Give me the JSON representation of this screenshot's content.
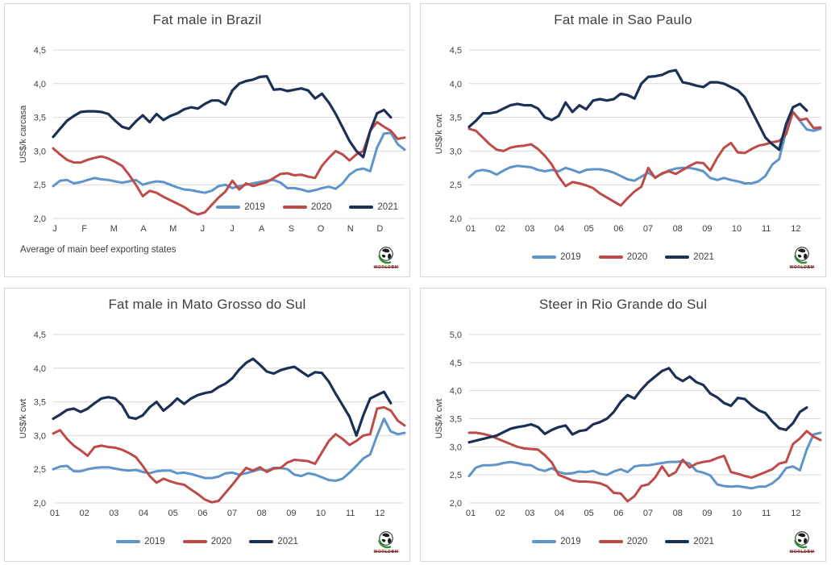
{
  "page": {
    "background": "#ffffff"
  },
  "branding": {
    "logo_text": "WORLDBM"
  },
  "style": {
    "grid_color": "#D9D9D9",
    "axis_text_color": "#404040",
    "title_color": "#3F3F3F",
    "panel_border_color": "#D8D8D8"
  },
  "chart_data": [
    {
      "type": "line",
      "title": "Fat male in Brazil",
      "ylabel": "US$/k carcasa",
      "note": "Average of main beef exporting states",
      "legend_position": "inside",
      "grid": true,
      "ylim": [
        2.0,
        4.5
      ],
      "ytick_labels": [
        "2,0",
        "2,5",
        "3,0",
        "3,5",
        "4,0",
        "4,5"
      ],
      "x_categories": [
        "J",
        "F",
        "M",
        "A",
        "M",
        "J",
        "J",
        "A",
        "S",
        "O",
        "N",
        "D"
      ],
      "series": [
        {
          "name": "2019",
          "color": "#5E94C9",
          "values": [
            2.48,
            2.56,
            2.57,
            2.52,
            2.54,
            2.57,
            2.6,
            2.58,
            2.57,
            2.55,
            2.53,
            2.55,
            2.57,
            2.5,
            2.53,
            2.55,
            2.54,
            2.5,
            2.46,
            2.43,
            2.42,
            2.4,
            2.38,
            2.41,
            2.48,
            2.5,
            2.45,
            2.48,
            2.5,
            2.52,
            2.54,
            2.56,
            2.57,
            2.53,
            2.45,
            2.45,
            2.43,
            2.4,
            2.42,
            2.45,
            2.47,
            2.44,
            2.52,
            2.65,
            2.72,
            2.74,
            2.7,
            3.05,
            3.26,
            3.27,
            3.1,
            3.02
          ]
        },
        {
          "name": "2020",
          "color": "#BE4B48",
          "values": [
            3.04,
            2.95,
            2.87,
            2.83,
            2.83,
            2.87,
            2.9,
            2.92,
            2.89,
            2.84,
            2.78,
            2.65,
            2.5,
            2.33,
            2.41,
            2.38,
            2.32,
            2.27,
            2.22,
            2.17,
            2.1,
            2.06,
            2.09,
            2.2,
            2.31,
            2.4,
            2.56,
            2.43,
            2.52,
            2.48,
            2.51,
            2.54,
            2.6,
            2.66,
            2.67,
            2.64,
            2.65,
            2.62,
            2.6,
            2.78,
            2.9,
            3.0,
            2.95,
            2.86,
            2.95,
            3.0,
            3.3,
            3.43,
            3.36,
            3.3,
            3.18,
            3.2
          ]
        },
        {
          "name": "2021",
          "color": "#1C3055",
          "values": [
            3.21,
            3.33,
            3.45,
            3.52,
            3.58,
            3.59,
            3.59,
            3.58,
            3.55,
            3.45,
            3.36,
            3.33,
            3.44,
            3.53,
            3.43,
            3.55,
            3.46,
            3.52,
            3.56,
            3.62,
            3.65,
            3.63,
            3.7,
            3.75,
            3.75,
            3.69,
            3.9,
            4.0,
            4.04,
            4.06,
            4.1,
            4.11,
            3.91,
            3.92,
            3.89,
            3.91,
            3.93,
            3.9,
            3.78,
            3.85,
            3.72,
            3.55,
            3.35,
            3.15,
            3.0,
            2.91,
            3.3,
            3.56,
            3.61,
            3.5
          ]
        }
      ]
    },
    {
      "type": "line",
      "title": "Fat male in Sao Paulo",
      "ylabel": "US$/k cwt",
      "legend_position": "below",
      "grid": true,
      "ylim": [
        2.0,
        4.5
      ],
      "ytick_labels": [
        "2,0",
        "2,5",
        "3,0",
        "3,5",
        "4,0",
        "4,5"
      ],
      "x_categories": [
        "01",
        "02",
        "03",
        "04",
        "05",
        "06",
        "07",
        "08",
        "09",
        "10",
        "11",
        "12"
      ],
      "series": [
        {
          "name": "2019",
          "color": "#5E94C9",
          "values": [
            2.61,
            2.7,
            2.72,
            2.7,
            2.65,
            2.71,
            2.76,
            2.78,
            2.77,
            2.76,
            2.72,
            2.7,
            2.72,
            2.7,
            2.75,
            2.72,
            2.68,
            2.72,
            2.73,
            2.73,
            2.71,
            2.68,
            2.63,
            2.58,
            2.56,
            2.62,
            2.68,
            2.61,
            2.66,
            2.71,
            2.74,
            2.75,
            2.75,
            2.73,
            2.7,
            2.6,
            2.57,
            2.6,
            2.57,
            2.55,
            2.52,
            2.52,
            2.55,
            2.63,
            2.8,
            2.88,
            3.3,
            3.58,
            3.45,
            3.32,
            3.3,
            3.33
          ]
        },
        {
          "name": "2020",
          "color": "#BE4B48",
          "values": [
            3.33,
            3.3,
            3.2,
            3.1,
            3.02,
            3.0,
            3.05,
            3.07,
            3.08,
            3.1,
            3.03,
            2.93,
            2.8,
            2.62,
            2.48,
            2.54,
            2.52,
            2.49,
            2.45,
            2.37,
            2.31,
            2.25,
            2.19,
            2.3,
            2.4,
            2.47,
            2.75,
            2.6,
            2.67,
            2.7,
            2.66,
            2.72,
            2.78,
            2.83,
            2.82,
            2.71,
            2.9,
            3.05,
            3.12,
            2.98,
            2.97,
            3.03,
            3.08,
            3.1,
            3.13,
            3.15,
            3.25,
            3.58,
            3.46,
            3.48,
            3.34,
            3.35
          ]
        },
        {
          "name": "2021",
          "color": "#1C3055",
          "values": [
            3.36,
            3.45,
            3.56,
            3.56,
            3.58,
            3.63,
            3.68,
            3.7,
            3.68,
            3.68,
            3.63,
            3.5,
            3.46,
            3.52,
            3.72,
            3.58,
            3.68,
            3.62,
            3.75,
            3.77,
            3.75,
            3.77,
            3.85,
            3.83,
            3.78,
            4.0,
            4.1,
            4.11,
            4.13,
            4.18,
            4.2,
            4.02,
            4.0,
            3.97,
            3.95,
            4.02,
            4.02,
            4.0,
            3.95,
            3.9,
            3.8,
            3.6,
            3.4,
            3.2,
            3.1,
            3.02,
            3.4,
            3.65,
            3.7,
            3.6
          ]
        }
      ]
    },
    {
      "type": "line",
      "title": "Fat male in Mato Grosso do Sul",
      "ylabel": "US$/k cwt",
      "legend_position": "below",
      "grid": true,
      "ylim": [
        2.0,
        4.5
      ],
      "ytick_labels": [
        "2,0",
        "2,5",
        "3,0",
        "3,5",
        "4,0",
        "4,5"
      ],
      "x_categories": [
        "01",
        "02",
        "03",
        "04",
        "05",
        "06",
        "07",
        "08",
        "09",
        "10",
        "11",
        "12"
      ],
      "series": [
        {
          "name": "2019",
          "color": "#5E94C9",
          "values": [
            2.5,
            2.54,
            2.55,
            2.47,
            2.47,
            2.5,
            2.52,
            2.53,
            2.53,
            2.51,
            2.49,
            2.48,
            2.49,
            2.46,
            2.44,
            2.47,
            2.48,
            2.48,
            2.44,
            2.45,
            2.43,
            2.4,
            2.37,
            2.37,
            2.39,
            2.44,
            2.45,
            2.42,
            2.44,
            2.47,
            2.5,
            2.48,
            2.52,
            2.52,
            2.5,
            2.42,
            2.4,
            2.44,
            2.42,
            2.38,
            2.34,
            2.33,
            2.36,
            2.45,
            2.55,
            2.66,
            2.72,
            3.0,
            3.25,
            3.06,
            3.02,
            3.04
          ]
        },
        {
          "name": "2020",
          "color": "#BE4B48",
          "values": [
            3.03,
            3.08,
            2.95,
            2.85,
            2.78,
            2.7,
            2.83,
            2.85,
            2.83,
            2.82,
            2.79,
            2.74,
            2.68,
            2.55,
            2.4,
            2.3,
            2.36,
            2.32,
            2.29,
            2.27,
            2.2,
            2.13,
            2.05,
            2.01,
            2.03,
            2.15,
            2.27,
            2.4,
            2.52,
            2.48,
            2.53,
            2.46,
            2.51,
            2.52,
            2.6,
            2.64,
            2.63,
            2.62,
            2.58,
            2.75,
            2.92,
            3.02,
            2.95,
            2.86,
            2.92,
            3.0,
            3.02,
            3.4,
            3.42,
            3.37,
            3.22,
            3.15
          ]
        },
        {
          "name": "2021",
          "color": "#1C3055",
          "values": [
            3.25,
            3.31,
            3.38,
            3.4,
            3.35,
            3.4,
            3.48,
            3.55,
            3.57,
            3.55,
            3.45,
            3.27,
            3.25,
            3.3,
            3.42,
            3.5,
            3.37,
            3.45,
            3.55,
            3.47,
            3.55,
            3.6,
            3.63,
            3.65,
            3.72,
            3.77,
            3.85,
            3.98,
            4.08,
            4.14,
            4.05,
            3.95,
            3.92,
            3.97,
            4.0,
            4.02,
            3.95,
            3.88,
            3.94,
            3.93,
            3.8,
            3.62,
            3.45,
            3.28,
            3.0,
            3.3,
            3.55,
            3.6,
            3.65,
            3.48
          ]
        }
      ]
    },
    {
      "type": "line",
      "title": "Steer in Rio Grande do Sul",
      "ylabel": "US$/k cwt",
      "legend_position": "below",
      "grid": true,
      "ylim": [
        2.0,
        5.0
      ],
      "ytick_labels": [
        "2,0",
        "2,5",
        "3,0",
        "3,5",
        "4,0",
        "4,5",
        "5,0"
      ],
      "x_categories": [
        "01",
        "02",
        "03",
        "04",
        "05",
        "06",
        "07",
        "08",
        "09",
        "10",
        "11",
        "12"
      ],
      "series": [
        {
          "name": "2019",
          "color": "#5E94C9",
          "values": [
            2.48,
            2.63,
            2.67,
            2.67,
            2.68,
            2.71,
            2.73,
            2.71,
            2.68,
            2.67,
            2.6,
            2.57,
            2.62,
            2.55,
            2.52,
            2.53,
            2.56,
            2.55,
            2.57,
            2.52,
            2.5,
            2.56,
            2.6,
            2.55,
            2.65,
            2.67,
            2.67,
            2.69,
            2.71,
            2.73,
            2.73,
            2.74,
            2.7,
            2.57,
            2.54,
            2.49,
            2.33,
            2.3,
            2.29,
            2.3,
            2.28,
            2.26,
            2.29,
            2.29,
            2.35,
            2.45,
            2.62,
            2.65,
            2.58,
            2.95,
            3.22,
            3.25
          ]
        },
        {
          "name": "2020",
          "color": "#BE4B48",
          "values": [
            3.25,
            3.25,
            3.23,
            3.2,
            3.15,
            3.1,
            3.05,
            3.0,
            2.97,
            2.96,
            2.95,
            2.85,
            2.72,
            2.5,
            2.45,
            2.4,
            2.38,
            2.38,
            2.37,
            2.35,
            2.3,
            2.18,
            2.17,
            2.03,
            2.12,
            2.3,
            2.33,
            2.45,
            2.65,
            2.48,
            2.55,
            2.77,
            2.63,
            2.7,
            2.73,
            2.75,
            2.8,
            2.84,
            2.55,
            2.52,
            2.48,
            2.45,
            2.5,
            2.55,
            2.6,
            2.7,
            2.73,
            3.05,
            3.15,
            3.28,
            3.18,
            3.12
          ]
        },
        {
          "name": "2021",
          "color": "#1C3055",
          "values": [
            3.08,
            3.11,
            3.14,
            3.17,
            3.2,
            3.26,
            3.32,
            3.35,
            3.37,
            3.4,
            3.35,
            3.23,
            3.3,
            3.35,
            3.38,
            3.22,
            3.28,
            3.3,
            3.4,
            3.44,
            3.5,
            3.62,
            3.8,
            3.92,
            3.86,
            4.02,
            4.15,
            4.25,
            4.35,
            4.4,
            4.24,
            4.17,
            4.25,
            4.15,
            4.1,
            3.95,
            3.88,
            3.78,
            3.73,
            3.87,
            3.85,
            3.74,
            3.65,
            3.6,
            3.45,
            3.33,
            3.3,
            3.42,
            3.62,
            3.7
          ]
        }
      ]
    }
  ]
}
